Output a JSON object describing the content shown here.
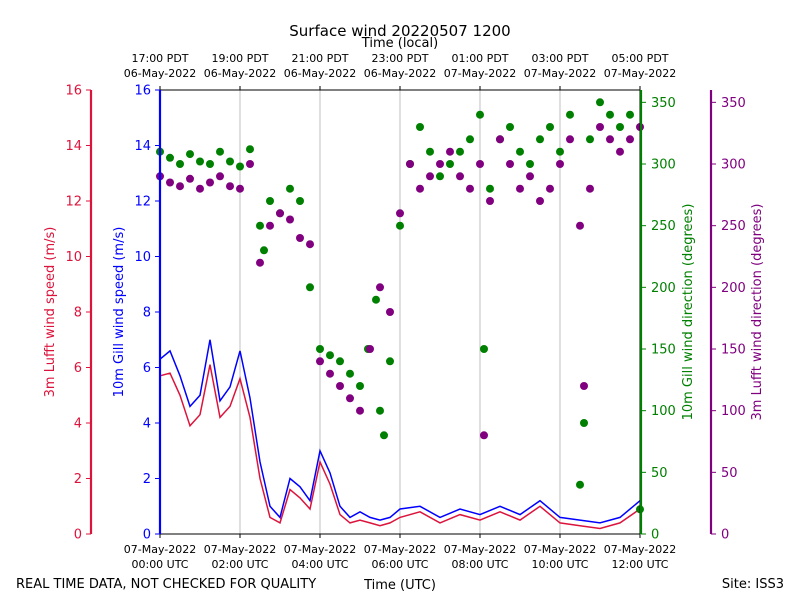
{
  "chart_data": {
    "type": "line+scatter",
    "title": "Surface wind 20220507 1200",
    "top_axis_title": "Time (local)",
    "xlabel": "Time (UTC)",
    "footer_left": "REAL TIME DATA, NOT CHECKED FOR QUALITY",
    "footer_right": "Site: ISS3",
    "x_range_utc_hours": [
      0,
      12
    ],
    "x_ticks_utc": [
      {
        "hour": 0,
        "line1": "07-May-2022",
        "line2": "00:00 UTC"
      },
      {
        "hour": 2,
        "line1": "07-May-2022",
        "line2": "02:00 UTC"
      },
      {
        "hour": 4,
        "line1": "07-May-2022",
        "line2": "04:00 UTC"
      },
      {
        "hour": 6,
        "line1": "07-May-2022",
        "line2": "06:00 UTC"
      },
      {
        "hour": 8,
        "line1": "07-May-2022",
        "line2": "08:00 UTC"
      },
      {
        "hour": 10,
        "line1": "07-May-2022",
        "line2": "10:00 UTC"
      },
      {
        "hour": 12,
        "line1": "07-May-2022",
        "line2": "12:00 UTC"
      }
    ],
    "x_ticks_local": [
      {
        "hour": 0,
        "line1": "17:00 PDT",
        "line2": "06-May-2022"
      },
      {
        "hour": 2,
        "line1": "19:00 PDT",
        "line2": "06-May-2022"
      },
      {
        "hour": 4,
        "line1": "21:00 PDT",
        "line2": "06-May-2022"
      },
      {
        "hour": 6,
        "line1": "23:00 PDT",
        "line2": "06-May-2022"
      },
      {
        "hour": 8,
        "line1": "01:00 PDT",
        "line2": "07-May-2022"
      },
      {
        "hour": 10,
        "line1": "03:00 PDT",
        "line2": "07-May-2022"
      },
      {
        "hour": 12,
        "line1": "05:00 PDT",
        "line2": "07-May-2022"
      }
    ],
    "axes": {
      "lufft_speed": {
        "label": "3m Lufft wind speed (m/s)",
        "range": [
          0,
          16
        ],
        "ticks": [
          0,
          2,
          4,
          6,
          8,
          10,
          12,
          14,
          16
        ],
        "color": "#dc143c"
      },
      "gill_speed": {
        "label": "10m Gill wind speed (m/s)",
        "range": [
          0,
          16
        ],
        "ticks": [
          0,
          2,
          4,
          6,
          8,
          10,
          12,
          14,
          16
        ],
        "color": "#0000ff"
      },
      "gill_dir": {
        "label": "10m Gill wind direction (degrees)",
        "range": [
          0,
          360
        ],
        "ticks": [
          0,
          50,
          100,
          150,
          200,
          250,
          300,
          350
        ],
        "color": "#008000"
      },
      "lufft_dir": {
        "label": "3m Lufft wind direction (degrees)",
        "range": [
          0,
          360
        ],
        "ticks": [
          0,
          50,
          100,
          150,
          200,
          250,
          300,
          350
        ],
        "color": "#800080"
      }
    },
    "series": [
      {
        "name": "10m Gill wind speed",
        "axis": "gill_speed",
        "type": "line",
        "color": "#0000ff",
        "x": [
          0,
          0.25,
          0.5,
          0.75,
          1.0,
          1.25,
          1.5,
          1.75,
          2.0,
          2.25,
          2.5,
          2.75,
          3.0,
          3.25,
          3.5,
          3.75,
          4.0,
          4.25,
          4.5,
          4.75,
          5.0,
          5.25,
          5.5,
          5.75,
          6.0,
          6.5,
          7.0,
          7.5,
          8.0,
          8.5,
          9.0,
          9.5,
          10.0,
          10.5,
          11.0,
          11.5,
          12.0
        ],
        "y": [
          6.3,
          6.6,
          5.7,
          4.6,
          5.0,
          7.0,
          4.8,
          5.3,
          6.6,
          4.9,
          2.6,
          1.0,
          0.6,
          2.0,
          1.7,
          1.2,
          3.0,
          2.2,
          1.0,
          0.6,
          0.8,
          0.6,
          0.5,
          0.6,
          0.9,
          1.0,
          0.6,
          0.9,
          0.7,
          1.0,
          0.7,
          1.2,
          0.6,
          0.5,
          0.4,
          0.6,
          1.2
        ]
      },
      {
        "name": "3m Lufft wind speed",
        "axis": "lufft_speed",
        "type": "line",
        "color": "#dc143c",
        "x": [
          0,
          0.25,
          0.5,
          0.75,
          1.0,
          1.25,
          1.5,
          1.75,
          2.0,
          2.25,
          2.5,
          2.75,
          3.0,
          3.25,
          3.5,
          3.75,
          4.0,
          4.25,
          4.5,
          4.75,
          5.0,
          5.25,
          5.5,
          5.75,
          6.0,
          6.5,
          7.0,
          7.5,
          8.0,
          8.5,
          9.0,
          9.5,
          10.0,
          10.5,
          11.0,
          11.5,
          12.0
        ],
        "y": [
          5.7,
          5.8,
          5.0,
          3.9,
          4.3,
          6.1,
          4.2,
          4.6,
          5.6,
          4.2,
          2.0,
          0.6,
          0.4,
          1.6,
          1.3,
          0.9,
          2.6,
          1.8,
          0.7,
          0.4,
          0.5,
          0.4,
          0.3,
          0.4,
          0.6,
          0.8,
          0.4,
          0.7,
          0.5,
          0.8,
          0.5,
          1.0,
          0.4,
          0.3,
          0.2,
          0.4,
          0.9
        ]
      },
      {
        "name": "10m Gill wind direction",
        "axis": "gill_dir",
        "type": "scatter",
        "color": "#008000",
        "x": [
          0,
          0.25,
          0.5,
          0.75,
          1.0,
          1.25,
          1.5,
          1.75,
          2.0,
          2.25,
          2.5,
          2.6,
          2.75,
          3.0,
          3.25,
          3.5,
          3.75,
          4.0,
          4.25,
          4.5,
          4.75,
          5.0,
          5.2,
          5.4,
          5.5,
          5.6,
          5.75,
          6.0,
          6.25,
          6.5,
          6.75,
          7.0,
          7.25,
          7.5,
          7.75,
          8.0,
          8.1,
          8.25,
          8.5,
          8.75,
          9.0,
          9.25,
          9.5,
          9.75,
          10.0,
          10.25,
          10.5,
          10.6,
          10.75,
          11.0,
          11.25,
          11.5,
          11.75,
          12.0
        ],
        "y": [
          310,
          305,
          300,
          308,
          302,
          300,
          310,
          302,
          298,
          312,
          250,
          230,
          270,
          260,
          280,
          270,
          200,
          150,
          145,
          140,
          130,
          120,
          150,
          190,
          100,
          80,
          140,
          250,
          300,
          330,
          310,
          290,
          300,
          310,
          320,
          340,
          150,
          280,
          320,
          330,
          310,
          300,
          320,
          330,
          310,
          340,
          40,
          90,
          320,
          350,
          340,
          330,
          340,
          20
        ]
      },
      {
        "name": "3m Lufft wind direction",
        "axis": "lufft_dir",
        "type": "scatter",
        "color": "#800080",
        "x": [
          0,
          0.25,
          0.5,
          0.75,
          1.0,
          1.25,
          1.5,
          1.75,
          2.0,
          2.25,
          2.5,
          2.75,
          3.0,
          3.25,
          3.5,
          3.75,
          4.0,
          4.25,
          4.5,
          4.75,
          5.0,
          5.25,
          5.5,
          5.75,
          6.0,
          6.25,
          6.5,
          6.75,
          7.0,
          7.25,
          7.5,
          7.75,
          8.0,
          8.1,
          8.25,
          8.5,
          8.75,
          9.0,
          9.25,
          9.5,
          9.75,
          10.0,
          10.25,
          10.5,
          10.6,
          10.75,
          11.0,
          11.25,
          11.5,
          11.75,
          12.0
        ],
        "y": [
          290,
          285,
          282,
          288,
          280,
          285,
          290,
          282,
          280,
          300,
          220,
          250,
          260,
          255,
          240,
          235,
          140,
          130,
          120,
          110,
          100,
          150,
          200,
          180,
          260,
          300,
          280,
          290,
          300,
          310,
          290,
          280,
          300,
          80,
          270,
          320,
          300,
          280,
          290,
          270,
          280,
          300,
          320,
          250,
          120,
          280,
          330,
          320,
          310,
          320,
          330
        ]
      }
    ]
  }
}
